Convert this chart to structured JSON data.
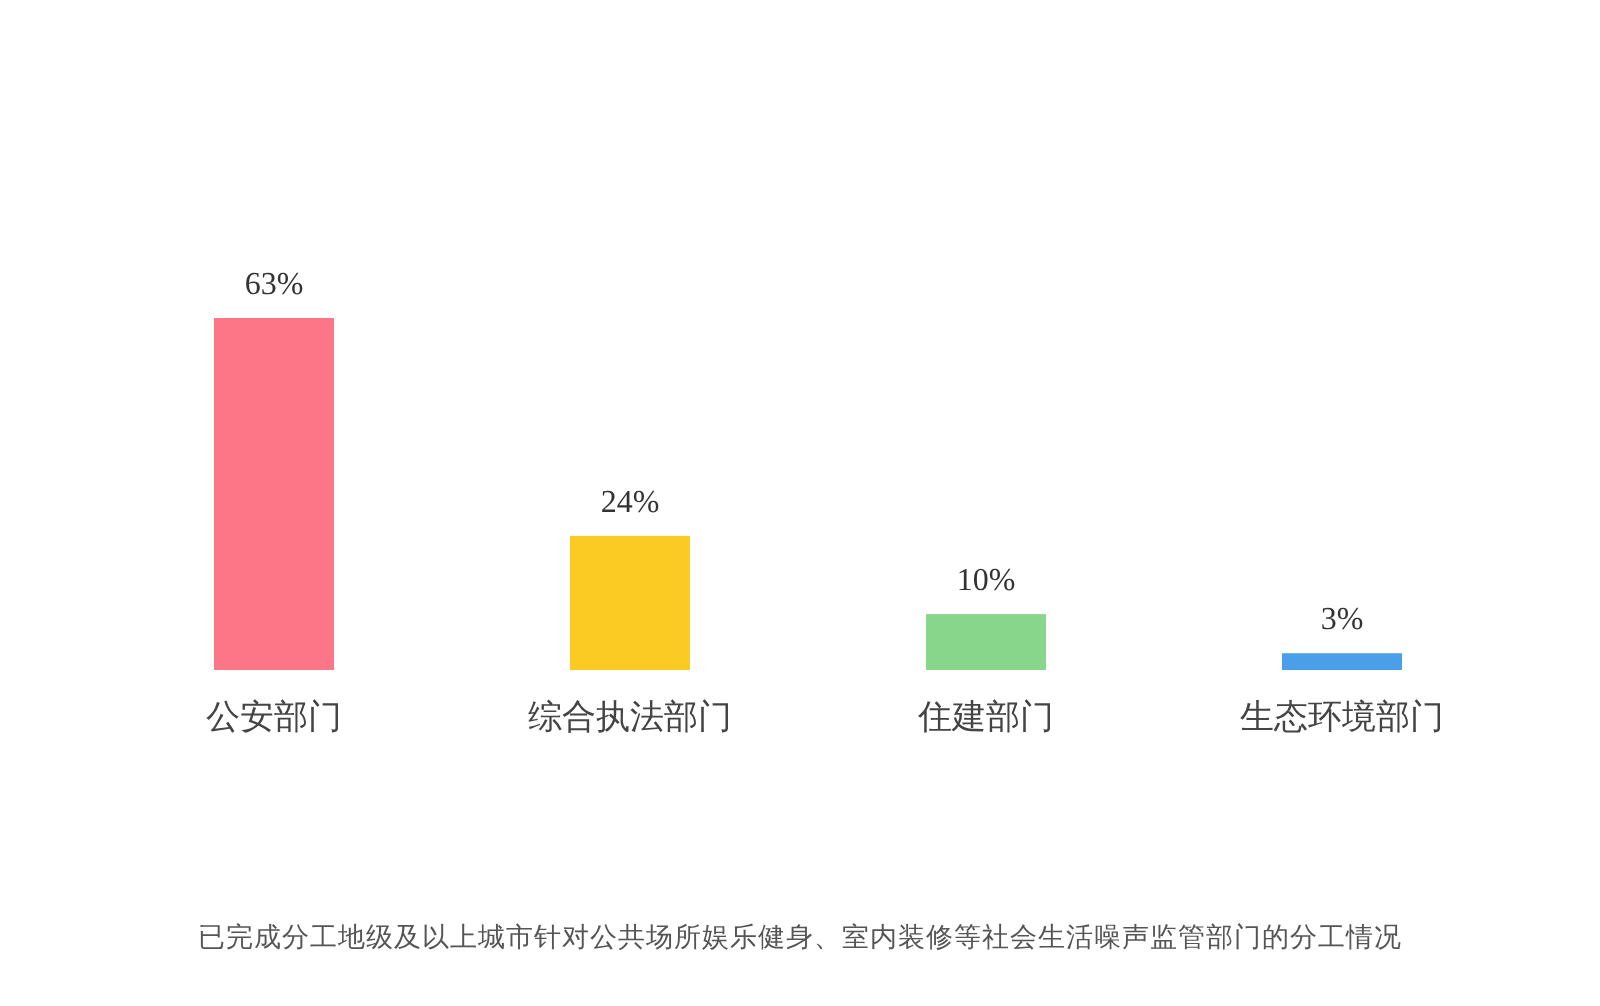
{
  "chart_data": {
    "type": "bar",
    "categories": [
      "公安部门",
      "综合执法部门",
      "住建部门",
      "生态环境部门"
    ],
    "values": [
      63,
      24,
      10,
      3
    ],
    "value_labels": [
      "63%",
      "24%",
      "10%",
      "3%"
    ],
    "colors": [
      "#fd7687",
      "#fccb23",
      "#87d68b",
      "#4b9fe9"
    ],
    "annotations": [
      "已完成分工地级及以上城市针对公共场所娱乐健身、室内装修等社会生活噪声监管部门的分工情况"
    ]
  }
}
